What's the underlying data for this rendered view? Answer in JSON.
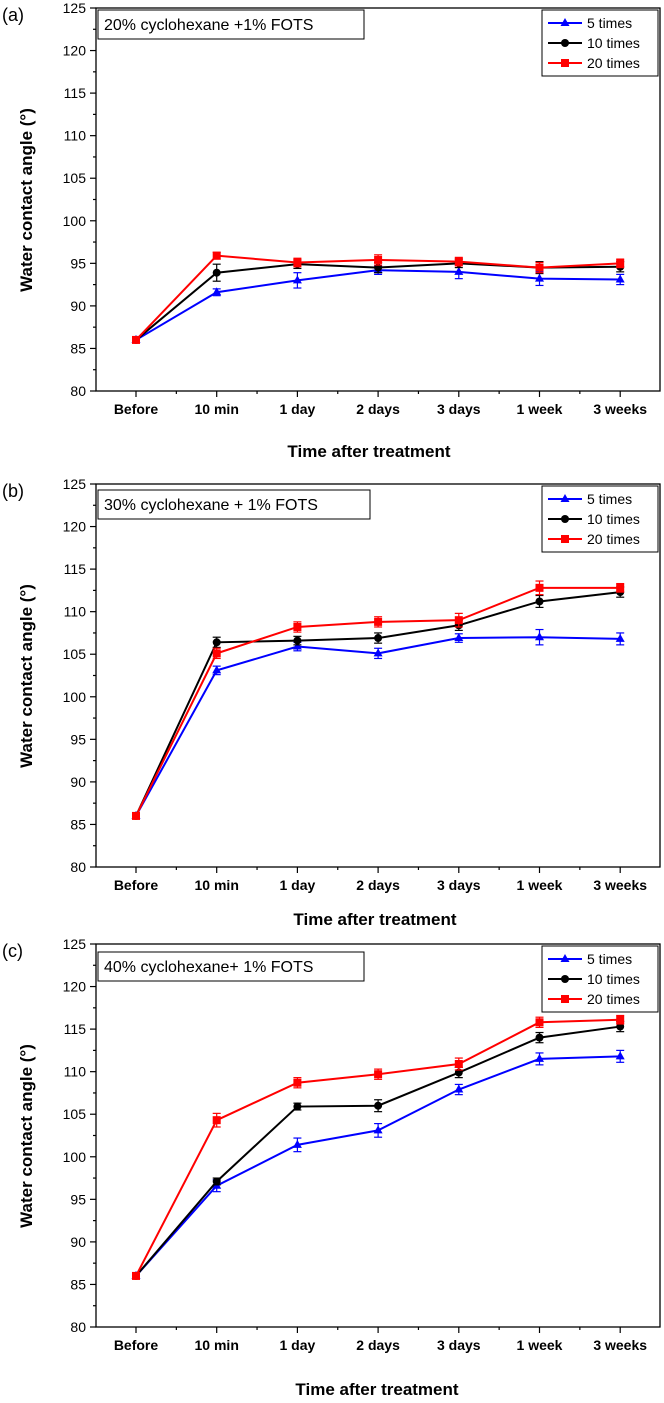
{
  "chart_data": [
    {
      "panel": "(a)",
      "type": "line",
      "title": "20% cyclohexane +1% FOTS",
      "xlabel": "Time after treatment",
      "ylabel": "Water contact angle (°)",
      "ylim": [
        80,
        125
      ],
      "yticks": [
        80,
        85,
        90,
        95,
        100,
        105,
        110,
        115,
        120,
        125
      ],
      "categories": [
        "Before",
        "10 min",
        "1 day",
        "2 days",
        "3 days",
        "1 week",
        "3 weeks"
      ],
      "series": [
        {
          "name": "5 times",
          "color": "#0000ff",
          "marker": "triangle",
          "values": [
            86.0,
            91.6,
            93.0,
            94.2,
            94.0,
            93.2,
            93.1
          ],
          "errors": [
            0.3,
            0.4,
            0.9,
            0.5,
            0.8,
            0.8,
            0.6
          ]
        },
        {
          "name": "10 times",
          "color": "#000000",
          "marker": "circle",
          "values": [
            86.0,
            93.9,
            94.9,
            94.5,
            95.0,
            94.5,
            94.6
          ],
          "errors": [
            0.3,
            1.0,
            0.5,
            0.6,
            0.5,
            0.7,
            0.6
          ]
        },
        {
          "name": "20 times",
          "color": "#ff0000",
          "marker": "square",
          "values": [
            86.0,
            95.9,
            95.1,
            95.4,
            95.2,
            94.5,
            95.0
          ],
          "errors": [
            0.3,
            0.4,
            0.5,
            0.6,
            0.5,
            0.6,
            0.5
          ]
        }
      ]
    },
    {
      "panel": "(b)",
      "type": "line",
      "title": "30% cyclohexane + 1% FOTS",
      "xlabel": "Time after treatment",
      "ylabel": "Water contact angle (°)",
      "ylim": [
        80,
        125
      ],
      "yticks": [
        80,
        85,
        90,
        95,
        100,
        105,
        110,
        115,
        120,
        125
      ],
      "categories": [
        "Before",
        "10 min",
        "1 day",
        "2 days",
        "3 days",
        "1 week",
        "3 weeks"
      ],
      "series": [
        {
          "name": "5 times",
          "color": "#0000ff",
          "marker": "triangle",
          "values": [
            86.0,
            103.1,
            105.9,
            105.1,
            106.9,
            107.0,
            106.8
          ],
          "errors": [
            0.3,
            0.5,
            0.5,
            0.6,
            0.5,
            0.9,
            0.7
          ]
        },
        {
          "name": "10 times",
          "color": "#000000",
          "marker": "circle",
          "values": [
            86.0,
            106.4,
            106.6,
            106.9,
            108.4,
            111.2,
            112.3
          ],
          "errors": [
            0.3,
            0.6,
            0.5,
            0.6,
            0.6,
            0.7,
            0.6
          ]
        },
        {
          "name": "20 times",
          "color": "#ff0000",
          "marker": "square",
          "values": [
            86.0,
            105.1,
            108.2,
            108.8,
            109.0,
            112.8,
            112.8
          ],
          "errors": [
            0.3,
            0.6,
            0.6,
            0.6,
            0.8,
            0.8,
            0.5
          ]
        }
      ]
    },
    {
      "panel": "(c)",
      "type": "line",
      "title": "40% cyclohexane+ 1% FOTS",
      "xlabel": "Time after treatment",
      "ylabel": "Water contact angle (°)",
      "ylim": [
        80,
        125
      ],
      "yticks": [
        80,
        85,
        90,
        95,
        100,
        105,
        110,
        115,
        120,
        125
      ],
      "categories": [
        "Before",
        "10 min",
        "1 day",
        "2 days",
        "3 days",
        "1 week",
        "3 weeks"
      ],
      "series": [
        {
          "name": "5 times",
          "color": "#0000ff",
          "marker": "triangle",
          "values": [
            86.0,
            96.6,
            101.4,
            103.1,
            107.9,
            111.5,
            111.8
          ],
          "errors": [
            0.3,
            0.7,
            0.8,
            0.8,
            0.6,
            0.7,
            0.7
          ]
        },
        {
          "name": "10 times",
          "color": "#000000",
          "marker": "circle",
          "values": [
            86.0,
            97.1,
            105.9,
            106.0,
            109.9,
            114.0,
            115.3
          ],
          "errors": [
            0.3,
            0.4,
            0.4,
            0.7,
            0.6,
            0.6,
            0.6
          ]
        },
        {
          "name": "20 times",
          "color": "#ff0000",
          "marker": "square",
          "values": [
            86.0,
            104.3,
            108.7,
            109.7,
            110.9,
            115.8,
            116.1
          ],
          "errors": [
            0.3,
            0.8,
            0.6,
            0.6,
            0.7,
            0.6,
            0.5
          ]
        }
      ]
    }
  ]
}
